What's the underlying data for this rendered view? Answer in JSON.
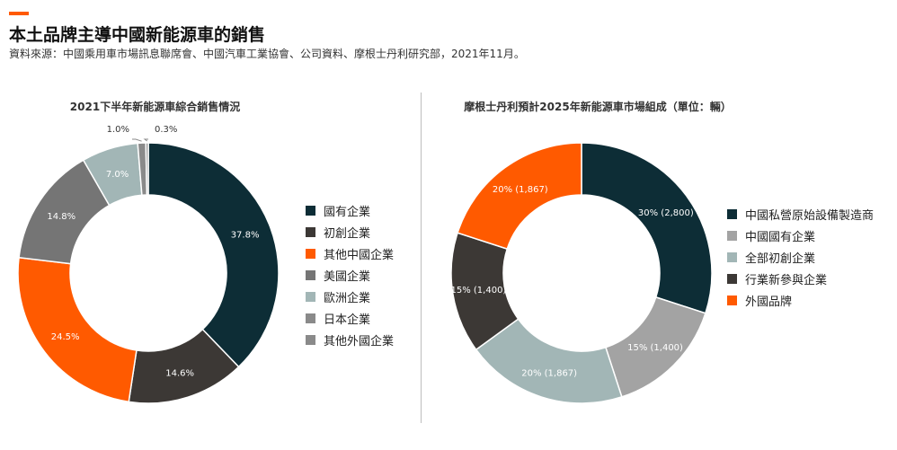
{
  "header": {
    "title": "本土品牌主導中國新能源車的銷售",
    "source": "資料來源：中國乘用車市場訊息聯席會、中國汽車工業協會、公司資料、摩根士丹利研究部，2021年11月。"
  },
  "colors": {
    "accent": "#ff5a00",
    "dark_teal": "#0d2d36",
    "dark_gray": "#3c3835",
    "orange": "#ff5a00",
    "mid_gray": "#757575",
    "light_teal": "#a2b6b6",
    "gray": "#8a8a8a",
    "light_gray": "#a3a3a3"
  },
  "chart_data": [
    {
      "type": "pie",
      "donut": true,
      "title": "2021下半年新能源車綜合銷售情況",
      "legend_position": "right",
      "slices": [
        {
          "name": "國有企業",
          "value": 37.8,
          "label": "37.8%",
          "color": "#0d2d36"
        },
        {
          "name": "初創企業",
          "value": 14.6,
          "label": "14.6%",
          "color": "#3c3835"
        },
        {
          "name": "其他中國企業",
          "value": 24.5,
          "label": "24.5%",
          "color": "#ff5a00"
        },
        {
          "name": "美國企業",
          "value": 14.8,
          "label": "14.8%",
          "color": "#757575"
        },
        {
          "name": "歐洲企業",
          "value": 7.0,
          "label": "7.0%",
          "color": "#a2b6b6"
        },
        {
          "name": "日本企業",
          "value": 1.0,
          "label": "1.0%",
          "color": "#8a8a8a"
        },
        {
          "name": "其他外國企業",
          "value": 0.3,
          "label": "0.3%",
          "color": "#8a8a8a"
        }
      ]
    },
    {
      "type": "pie",
      "donut": true,
      "title": "摩根士丹利預計2025年新能源車市場組成（單位：輛）",
      "legend_position": "right",
      "slices": [
        {
          "name": "中國私營原始設備製造商",
          "value": 2800,
          "percent": 30,
          "label": "30% (2,800)",
          "color": "#0d2d36"
        },
        {
          "name": "中國國有企業",
          "value": 1400,
          "percent": 15,
          "label": "15% (1,400)",
          "color": "#a3a3a3"
        },
        {
          "name": "全部初創企業",
          "value": 1867,
          "percent": 20,
          "label": "20% (1,867)",
          "color": "#a2b6b6"
        },
        {
          "name": "行業新參與企業",
          "value": 1400,
          "percent": 15,
          "label": "15% (1,400)",
          "color": "#3c3835"
        },
        {
          "name": "外國品牌",
          "value": 1867,
          "percent": 20,
          "label": "20% (1,867)",
          "color": "#ff5a00"
        }
      ]
    }
  ]
}
